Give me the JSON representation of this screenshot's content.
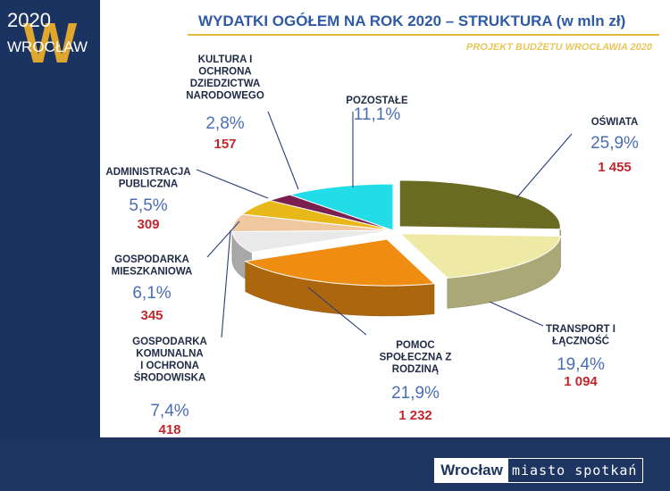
{
  "header": {
    "logo_year": "2020",
    "logo_city": "WROCŁAW",
    "logo_letter": "W",
    "title": "WYDATKI OGÓŁEM NA ROK 2020 – STRUKTURA (w mln zł)",
    "subtitle": "PROJEKT BUDŻETU WROCŁAWIA 2020"
  },
  "footer": {
    "city": "Wrocław",
    "motto": "miasto spotkań"
  },
  "colors": {
    "background": "#1d3560",
    "title": "#2f5aa6",
    "percent": "#4a6db3",
    "value": "#c0272d",
    "gold": "#e0b93a"
  },
  "chart_data": {
    "type": "pie",
    "title": "WYDATKI OGÓŁEM NA ROK 2020 – STRUKTURA (w mln zł)",
    "slices": [
      {
        "label": "OŚWIATA",
        "percent_label": "25,9%",
        "value_label": "1 455",
        "value": 1455,
        "percent": 25.9,
        "color": "#6b6a22"
      },
      {
        "label": "TRANSPORT I ŁĄCZNOŚĆ",
        "percent_label": "19,4%",
        "value_label": "1 094",
        "value": 1094,
        "percent": 19.4,
        "color": "#eeeaa5"
      },
      {
        "label": "POMOC SPOŁECZNA Z RODZINĄ",
        "percent_label": "21,9%",
        "value_label": "1 232",
        "value": 1232,
        "percent": 21.9,
        "color": "#ef8d12"
      },
      {
        "label": "GOSPODARKA KOMUNALNA I OCHRONA ŚRODOWISKA",
        "percent_label": "7,4%",
        "value_label": "418",
        "value": 418,
        "percent": 7.4,
        "color": "#e9e9e9"
      },
      {
        "label": "GOSPODARKA MIESZKANIOWA",
        "percent_label": "6,1%",
        "value_label": "345",
        "value": 345,
        "percent": 6.1,
        "color": "#f0c8a0"
      },
      {
        "label": "ADMINISTRACJA PUBLICZNA",
        "percent_label": "5,5%",
        "value_label": "309",
        "value": 309,
        "percent": 5.5,
        "color": "#e7b817"
      },
      {
        "label": "KULTURA I OCHRONA DZIEDZICTWA NARODOWEGO",
        "percent_label": "2,8%",
        "value_label": "157",
        "value": 157,
        "percent": 2.8,
        "color": "#7a2050"
      },
      {
        "label": "POZOSTAŁE",
        "percent_label": "11,1%",
        "value_label": "",
        "value": null,
        "percent": 11.1,
        "color": "#22dde8"
      }
    ]
  }
}
